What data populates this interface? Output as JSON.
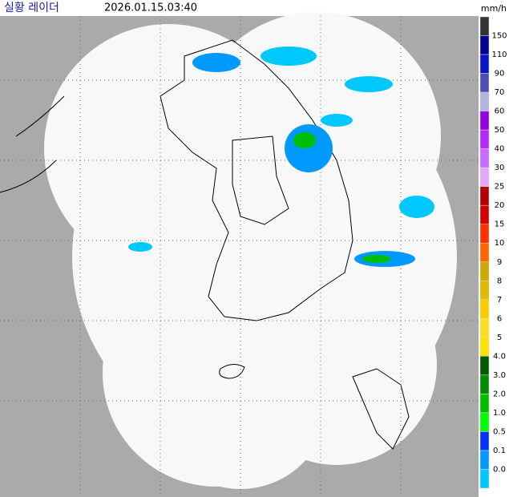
{
  "header": {
    "title": "실황 레이더",
    "timestamp": "2026.01.15.03:40",
    "unit": "mm/h"
  },
  "legend": {
    "labels": [
      "150",
      "110",
      "90",
      "70",
      "60",
      "50",
      "40",
      "30",
      "25",
      "20",
      "15",
      "10",
      "9",
      "8",
      "7",
      "6",
      "5",
      "4.0",
      "3.0",
      "2.0",
      "1.0",
      "0.5",
      "0.1",
      "0.0"
    ],
    "colors": [
      "#333333",
      "#000390",
      "#0a14c8",
      "#4c4eb1",
      "#b3b4de",
      "#9300e4",
      "#b329ff",
      "#c969ff",
      "#e0a9ff",
      "#b40000",
      "#d20000",
      "#ff3200",
      "#ff6600",
      "#ccaa00",
      "#e0b900",
      "#f9cd00",
      "#ffdc1f",
      "#ffe100",
      "#005a00",
      "#008c00",
      "#00be00",
      "#00ff00",
      "#0033f5",
      "#0099ff",
      "#00c8ff"
    ]
  }
}
